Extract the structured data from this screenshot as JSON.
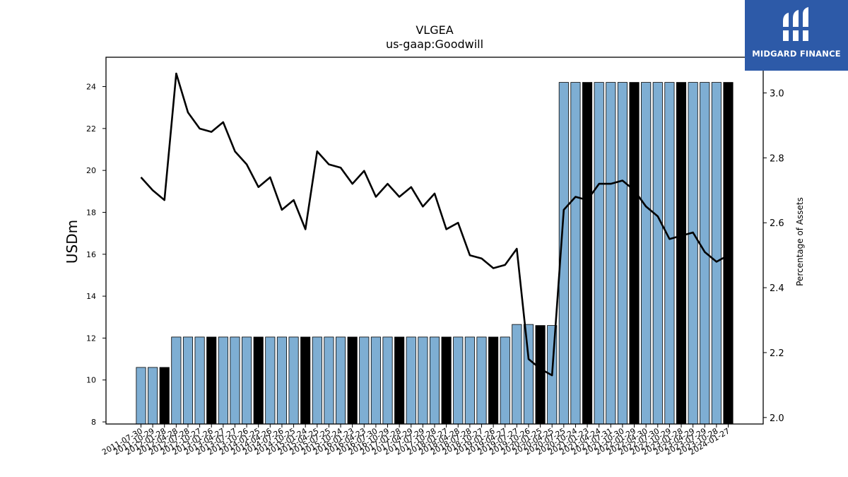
{
  "brand": {
    "name": "MIDGARD FINANCE",
    "bg_color": "#2d5aa8"
  },
  "chart_data": {
    "type": "bar",
    "title": "VLGEA",
    "subtitle": "us-gaap:Goodwill",
    "ylabel": "USDm",
    "y2label": "Percentage of Assets",
    "ylim": [
      7.9,
      25.4
    ],
    "y2lim": [
      1.98,
      3.11
    ],
    "yticks": [
      8,
      10,
      12,
      14,
      16,
      18,
      20,
      22,
      24
    ],
    "y2ticks": [
      2.0,
      2.2,
      2.4,
      2.6,
      2.8,
      3.0
    ],
    "categories": [
      "2011-07-30",
      "2011-10-29",
      "2012-01-28",
      "2012-04-28",
      "2012-07-28",
      "2012-10-27",
      "2013-01-26",
      "2013-04-27",
      "2013-07-27",
      "2013-10-26",
      "2014-01-25",
      "2014-04-26",
      "2014-07-26",
      "2014-10-25",
      "2015-01-24",
      "2015-04-25",
      "2015-07-25",
      "2015-10-24",
      "2016-01-23",
      "2016-04-23",
      "2016-07-30",
      "2016-10-29",
      "2017-01-28",
      "2017-04-29",
      "2017-07-29",
      "2017-10-28",
      "2018-01-27",
      "2018-04-28",
      "2018-07-28",
      "2018-10-27",
      "2019-01-26",
      "2019-04-27",
      "2019-07-27",
      "2019-10-26",
      "2020-01-25",
      "2020-04-25",
      "2020-07-25",
      "2020-10-24",
      "2021-01-23",
      "2021-04-24",
      "2021-07-31",
      "2021-10-30",
      "2022-01-29",
      "2022-04-30",
      "2022-07-30",
      "2022-10-29",
      "2023-01-28",
      "2023-04-29",
      "2023-07-29",
      "2023-10-28",
      "2024-01-27"
    ],
    "series": [
      {
        "kind": "bar",
        "values": [
          10.6,
          10.6,
          10.6,
          12.05,
          12.05,
          12.05,
          12.05,
          12.05,
          12.05,
          12.05,
          12.05,
          12.05,
          12.05,
          12.05,
          12.05,
          12.05,
          12.05,
          12.05,
          12.05,
          12.05,
          12.05,
          12.05,
          12.05,
          12.05,
          12.05,
          12.05,
          12.05,
          12.05,
          12.05,
          12.05,
          12.05,
          12.05,
          12.65,
          12.65,
          12.6,
          12.6,
          24.2,
          24.2,
          24.2,
          24.2,
          24.2,
          24.2,
          24.2,
          24.2,
          24.2,
          24.2,
          24.2,
          24.2,
          24.2,
          24.2,
          24.2
        ],
        "highlight_index_mod4": 2,
        "color": "#7eaed3",
        "highlight_color": "#000000"
      },
      {
        "kind": "line",
        "axis": "right",
        "color": "#000000",
        "values": [
          2.74,
          2.7,
          2.67,
          3.06,
          2.94,
          2.89,
          2.88,
          2.91,
          2.82,
          2.78,
          2.71,
          2.74,
          2.64,
          2.67,
          2.58,
          2.82,
          2.78,
          2.77,
          2.72,
          2.76,
          2.68,
          2.72,
          2.68,
          2.71,
          2.65,
          2.69,
          2.58,
          2.6,
          2.5,
          2.49,
          2.46,
          2.47,
          2.52,
          2.18,
          2.15,
          2.13,
          2.64,
          2.68,
          2.67,
          2.72,
          2.72,
          2.73,
          2.7,
          2.65,
          2.62,
          2.55,
          2.56,
          2.57,
          2.51,
          2.48,
          2.5
        ]
      }
    ],
    "grid": false,
    "legend": "none"
  }
}
